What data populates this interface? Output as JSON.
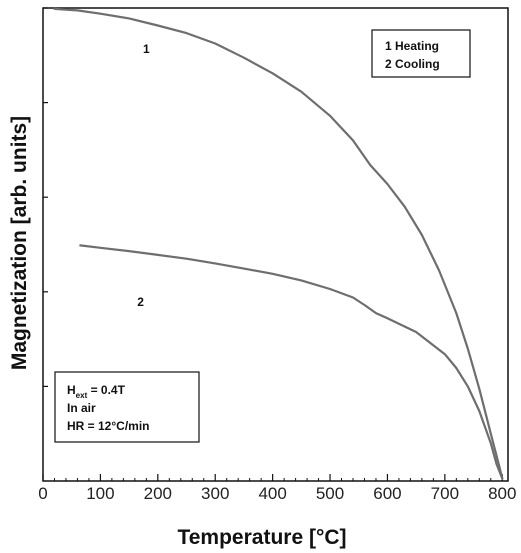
{
  "chart_data": {
    "type": "line",
    "xlabel": "Temperature [°C]",
    "ylabel": "Magnetization [arb. units]",
    "xlim": [
      0,
      810
    ],
    "ylim": [
      0,
      1.0
    ],
    "x_ticks": [
      0,
      100,
      200,
      300,
      400,
      500,
      600,
      700,
      800
    ],
    "y_tick_labels_shown": false,
    "grid": false,
    "series": [
      {
        "label": "1",
        "x": [
          20,
          60,
          100,
          150,
          200,
          250,
          300,
          350,
          400,
          450,
          500,
          540,
          570,
          600,
          630,
          660,
          690,
          720,
          740,
          760,
          780,
          795,
          800
        ],
        "y": [
          0.998,
          0.995,
          0.988,
          0.978,
          0.963,
          0.947,
          0.925,
          0.895,
          0.862,
          0.823,
          0.772,
          0.72,
          0.668,
          0.628,
          0.58,
          0.52,
          0.445,
          0.355,
          0.28,
          0.195,
          0.1,
          0.03,
          0.005
        ]
      },
      {
        "label": "2",
        "x": [
          65,
          100,
          150,
          200,
          250,
          300,
          350,
          400,
          450,
          500,
          540,
          560,
          580,
          600,
          650,
          700,
          720,
          740,
          760,
          780,
          790,
          800
        ],
        "y": [
          0.498,
          0.493,
          0.486,
          0.478,
          0.47,
          0.46,
          0.449,
          0.438,
          0.424,
          0.406,
          0.388,
          0.372,
          0.355,
          0.344,
          0.315,
          0.268,
          0.239,
          0.2,
          0.148,
          0.08,
          0.036,
          0.005
        ]
      }
    ],
    "legend_box": {
      "position": "top-right",
      "lines": [
        "1 Heating",
        "2 Cooling"
      ]
    },
    "annotation_box": {
      "position": "bottom-left",
      "line1_main": "H",
      "line1_sub": "ext",
      "line1_rest": " = 0.4T",
      "line2": "In air",
      "line3": "HR = 12°C/min"
    },
    "curve_labels": [
      {
        "text": "1",
        "x": 180,
        "y": 0.905
      },
      {
        "text": "2",
        "x": 170,
        "y": 0.37
      }
    ]
  },
  "colors": {
    "curve": "#6e6e6e",
    "axis": "#111111",
    "background": "#ffffff"
  }
}
